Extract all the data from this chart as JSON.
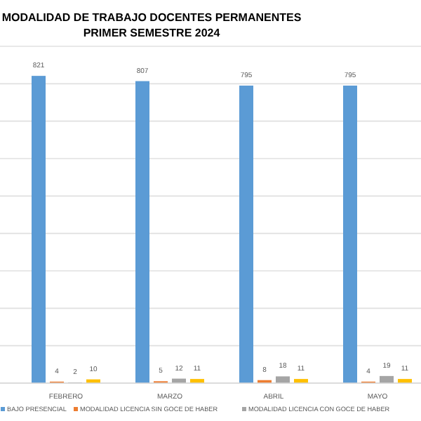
{
  "chart_data": {
    "type": "bar",
    "title": "MODALIDAD DE TRABAJO DOCENTES PERMANENTES",
    "subtitle": "PRIMER SEMESTRE 2024",
    "categories": [
      "FEBRERO",
      "MARZO",
      "ABRIL",
      "MAYO"
    ],
    "series": [
      {
        "name": "BAJO PRESENCIAL",
        "color": "#5b9bd5",
        "values": [
          821,
          807,
          795,
          795
        ]
      },
      {
        "name": "MODALIDAD LICENCIA SIN GOCE DE HABER",
        "color": "#ed7d31",
        "values": [
          4,
          5,
          8,
          4
        ]
      },
      {
        "name": "MODALIDAD LICENCIA CON GOCE DE HABER",
        "color": "#a5a5a5",
        "values": [
          2,
          12,
          18,
          19
        ]
      },
      {
        "color": "#ffc000",
        "values": [
          10,
          11,
          11,
          11
        ]
      }
    ],
    "ylim": [
      0,
      900
    ],
    "yticks": [
      {
        "value": 0,
        "label": null
      },
      {
        "value": 100,
        "label": null
      },
      {
        "value": 200,
        "label": null
      },
      {
        "value": 300,
        "label": null
      },
      {
        "value": 400,
        "label": null
      },
      {
        "value": 500,
        "label": null
      },
      {
        "value": 600,
        "label": null
      },
      {
        "value": 700,
        "label": null
      },
      {
        "value": 800,
        "label": null
      },
      {
        "value": 900,
        "label": null
      }
    ],
    "grid": "y",
    "data_labels": true,
    "legend": "bottom",
    "tick_labels": "x"
  }
}
